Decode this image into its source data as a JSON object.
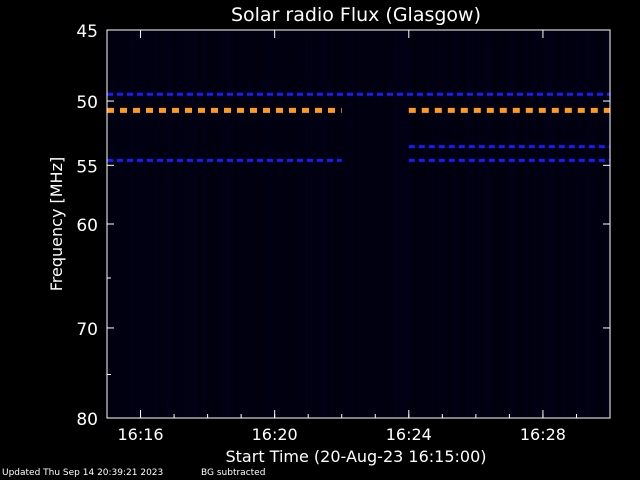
{
  "chart_data": {
    "type": "heatmap",
    "title": "Solar radio Flux (Glasgow)",
    "ylabel": "Frequency [MHz]",
    "xlabel": "Start Time (20-Aug-23 16:15:00)",
    "y_scale": "log",
    "y_inverted": true,
    "ylim": [
      45,
      80
    ],
    "y_ticks": [
      {
        "value": 45,
        "label": "45"
      },
      {
        "value": 50,
        "label": "50"
      },
      {
        "value": 55,
        "label": "55"
      },
      {
        "value": 60,
        "label": "60"
      },
      {
        "value": 70,
        "label": "70"
      },
      {
        "value": 80,
        "label": "80"
      }
    ],
    "xlim": [
      "16:15",
      "16:30"
    ],
    "x_ticks": [
      "16:16",
      "16:20",
      "16:24",
      "16:28"
    ],
    "data_gaps": [
      [
        "16:22",
        "16:24"
      ]
    ],
    "emission_bands": [
      {
        "frequency_mhz": 49.5,
        "color": "#1a1aff",
        "spans": [
          [
            "16:15",
            "16:30"
          ]
        ]
      },
      {
        "frequency_mhz": 50.7,
        "color": "#ff9a1f",
        "spans": [
          [
            "16:15",
            "16:22"
          ],
          [
            "16:24",
            "16:30"
          ]
        ]
      },
      {
        "frequency_mhz": 53.5,
        "color": "#1a1aff",
        "spans": [
          [
            "16:24",
            "16:30"
          ]
        ]
      },
      {
        "frequency_mhz": 54.6,
        "color": "#1a1aff",
        "spans": [
          [
            "16:15",
            "16:22"
          ],
          [
            "16:24",
            "16:30"
          ]
        ]
      }
    ],
    "background_color": "#000010"
  },
  "footer": {
    "updated": "Updated Thu Sep 14 20:39:21 2023",
    "note": "BG subtracted"
  }
}
